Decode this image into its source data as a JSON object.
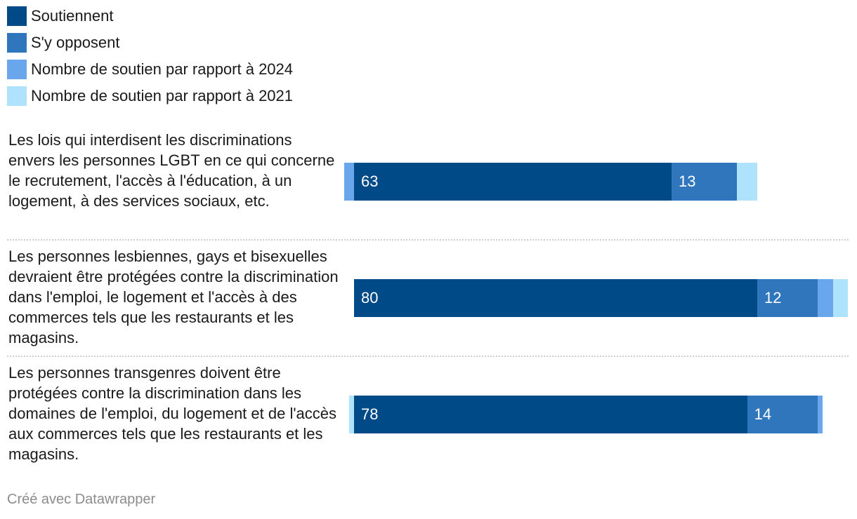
{
  "chart_data": {
    "type": "bar",
    "orientation": "horizontal",
    "stacked": true,
    "legend_position": "top-left",
    "series": [
      {
        "name": "Soutiennent",
        "color": "#004a87",
        "values": [
          63,
          80,
          78
        ]
      },
      {
        "name": "S'y opposent",
        "color": "#2f76bd",
        "values": [
          13,
          12,
          14
        ]
      },
      {
        "name": "Nombre de soutien par rapport à 2024",
        "color": "#6aa6ec",
        "values": [
          -2,
          3,
          1
        ]
      },
      {
        "name": "Nombre de soutien par rapport à 2021",
        "color": "#aee2fd",
        "values": [
          4,
          3,
          -1
        ]
      }
    ],
    "categories": [
      "Les lois qui interdisent les discriminations envers les personnes LGBT en ce qui concerne le recrutement, l'accès à l'éducation, à un logement, à des services sociaux, etc.",
      "Les personnes lesbiennes, gays et bisexuelles devraient être protégées contre la discrimination dans l'emploi, le logement et l'accès à des commerces tels que les restaurants et les magasins.",
      "Les personnes transgenres doivent être protégées contre la discrimination dans les domaines de l'emploi, du logement et de l'accès aux commerces tels que les restaurants et les magasins."
    ],
    "data_labels": [
      [
        "63",
        "13"
      ],
      [
        "80",
        "12"
      ],
      [
        "78",
        "14"
      ]
    ]
  },
  "footer": "Créé avec Datawrapper"
}
